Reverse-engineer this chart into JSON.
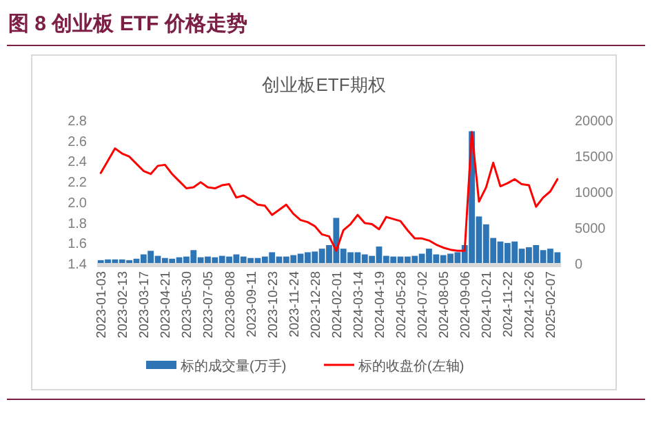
{
  "chart_data": {
    "type": "bar",
    "title": "图 8 创业板 ETF 价格走势",
    "subtitle": "创业板ETF期权",
    "categories": [
      "2023-01-03",
      null,
      null,
      "2023-02-13",
      null,
      null,
      "2023-03-17",
      null,
      null,
      "2023-04-21",
      null,
      null,
      "2023-05-30",
      null,
      null,
      "2023-07-05",
      null,
      null,
      "2023-08-08",
      null,
      null,
      "2023-09-11",
      null,
      null,
      "2023-10-23",
      null,
      null,
      "2023-11-24",
      null,
      null,
      "2023-12-28",
      null,
      null,
      "2024-02-01",
      null,
      null,
      "2024-03-14",
      null,
      null,
      "2024-04-19",
      null,
      null,
      "2024-05-28",
      null,
      null,
      "2024-07-02",
      null,
      null,
      "2024-08-05",
      null,
      null,
      "2024-09-06",
      null,
      null,
      "2024-10-21",
      null,
      null,
      "2024-11-22",
      null,
      null,
      "2024-12-26",
      null,
      null,
      "2025-02-07",
      null
    ],
    "series": [
      {
        "name": "标的成交量(万手)",
        "axis": "y2",
        "color": "#2e75b6",
        "values": [
          400,
          500,
          500,
          500,
          400,
          600,
          1200,
          1700,
          1000,
          700,
          600,
          800,
          900,
          1800,
          800,
          900,
          800,
          1000,
          900,
          1200,
          900,
          700,
          700,
          900,
          1500,
          900,
          900,
          1100,
          1300,
          1500,
          1600,
          2000,
          2500,
          6300,
          2000,
          1500,
          1500,
          1200,
          1000,
          2300,
          1000,
          900,
          900,
          900,
          1000,
          1300,
          2000,
          1200,
          1100,
          1300,
          1500,
          2500,
          18400,
          6500,
          5400,
          3500,
          3000,
          2800,
          3000,
          2000,
          2200,
          2500,
          1800,
          2000,
          1500
        ]
      },
      {
        "name": "标的收盘价(左轴)",
        "type": "line",
        "color": "#ff0000",
        "values": [
          2.28,
          2.4,
          2.52,
          2.47,
          2.44,
          2.37,
          2.3,
          2.27,
          2.35,
          2.36,
          2.27,
          2.2,
          2.13,
          2.14,
          2.19,
          2.14,
          2.13,
          2.16,
          2.17,
          2.04,
          2.06,
          2.02,
          1.97,
          1.96,
          1.87,
          1.92,
          1.97,
          1.88,
          1.82,
          1.8,
          1.76,
          1.68,
          1.66,
          1.52,
          1.72,
          1.78,
          1.87,
          1.79,
          1.78,
          1.73,
          1.85,
          1.83,
          1.81,
          1.72,
          1.64,
          1.64,
          1.62,
          1.58,
          1.55,
          1.53,
          1.52,
          1.52,
          2.68,
          2.0,
          2.14,
          2.38,
          2.15,
          2.18,
          2.22,
          2.17,
          2.16,
          1.95,
          2.04,
          2.1,
          2.22
        ]
      }
    ],
    "ylim": [
      1.4,
      2.8
    ],
    "yticks": [
      1.4,
      1.6,
      1.8,
      {
        "value": 2,
        "label": "2.0"
      },
      2.2,
      2.4,
      2.6,
      2.8
    ],
    "y2lim": [
      0,
      20000
    ],
    "y2ticks": [
      0,
      5000,
      10000,
      15000,
      20000
    ],
    "legend": "bottom"
  }
}
